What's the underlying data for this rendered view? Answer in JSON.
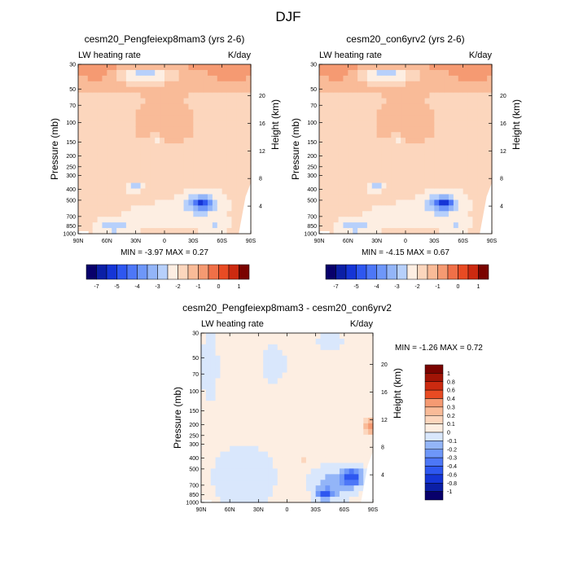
{
  "figure": {
    "title": "DJF"
  },
  "colors": {
    "diverging": [
      "#08006b",
      "#0b1fa6",
      "#1535d6",
      "#2e57f0",
      "#4d77f7",
      "#6e97f9",
      "#93b5f8",
      "#b7d0fb",
      "#d9e7fc",
      "#fdeee2",
      "#fcd6bd",
      "#f9bb98",
      "#f59a72",
      "#f07048",
      "#e84b23",
      "#cc2a10",
      "#a11406",
      "#7a0300"
    ],
    "line": "#000000"
  },
  "chart_data": [
    {
      "type": "heatmap",
      "title": "cesm20_Pengfeiexp8mam3 (yrs 2-6)",
      "left_label": "LW heating rate",
      "right_label": "K/day",
      "xlabel": "",
      "ylabel": "Pressure (mb)",
      "y2label": "Height (km)",
      "x_ticks": [
        "90N",
        "60N",
        "30N",
        "0",
        "30S",
        "60S",
        "90S"
      ],
      "y_ticks": [
        "30",
        "50",
        "70",
        "100",
        "150",
        "200",
        "250",
        "300",
        "400",
        "500",
        "700",
        "850",
        "1000"
      ],
      "y2_ticks": [
        "20",
        "16",
        "12",
        "8",
        "4"
      ],
      "min_label": "MIN = -3.97",
      "max_label": "MAX = 0.27",
      "colorbar": [
        "-7",
        "-5",
        "-4",
        "-3",
        "-2",
        "-1",
        "0",
        "1"
      ],
      "field_min": -3.97,
      "field_max": 0.27
    },
    {
      "type": "heatmap",
      "title": "cesm20_con6yrv2 (yrs 2-6)",
      "left_label": "LW heating rate",
      "right_label": "K/day",
      "xlabel": "",
      "ylabel": "Pressure (mb)",
      "y2label": "Height (km)",
      "x_ticks": [
        "90N",
        "60N",
        "30N",
        "0",
        "30S",
        "60S",
        "90S"
      ],
      "y_ticks": [
        "30",
        "50",
        "70",
        "100",
        "150",
        "200",
        "250",
        "300",
        "400",
        "500",
        "700",
        "850",
        "1000"
      ],
      "y2_ticks": [
        "20",
        "16",
        "12",
        "8",
        "4"
      ],
      "min_label": "MIN = -4.15",
      "max_label": "MAX = 0.67",
      "colorbar": [
        "-7",
        "-5",
        "-4",
        "-3",
        "-2",
        "-1",
        "0",
        "1"
      ],
      "field_min": -4.15,
      "field_max": 0.67
    },
    {
      "type": "heatmap",
      "title": "cesm20_Pengfeiexp8mam3 - cesm20_con6yrv2",
      "left_label": "LW heating rate",
      "right_label": "K/day",
      "xlabel": "",
      "ylabel": "Pressure (mb)",
      "y2label": "Height (km)",
      "x_ticks": [
        "90N",
        "60N",
        "30N",
        "0",
        "30S",
        "60S",
        "90S"
      ],
      "y_ticks": [
        "30",
        "50",
        "70",
        "100",
        "150",
        "200",
        "250",
        "300",
        "400",
        "500",
        "700",
        "850",
        "1000"
      ],
      "y2_ticks": [
        "20",
        "16",
        "12",
        "8",
        "4"
      ],
      "min_label": "MIN = -1.26",
      "max_label": "MAX = 0.72",
      "colorbar": [
        "1",
        "0.8",
        "0.6",
        "0.4",
        "0.3",
        "0.2",
        "0.1",
        "0",
        "-0.1",
        "-0.2",
        "-0.3",
        "-0.4",
        "-0.6",
        "-0.8",
        "-1"
      ],
      "field_min": -1.26,
      "field_max": 0.72
    }
  ]
}
